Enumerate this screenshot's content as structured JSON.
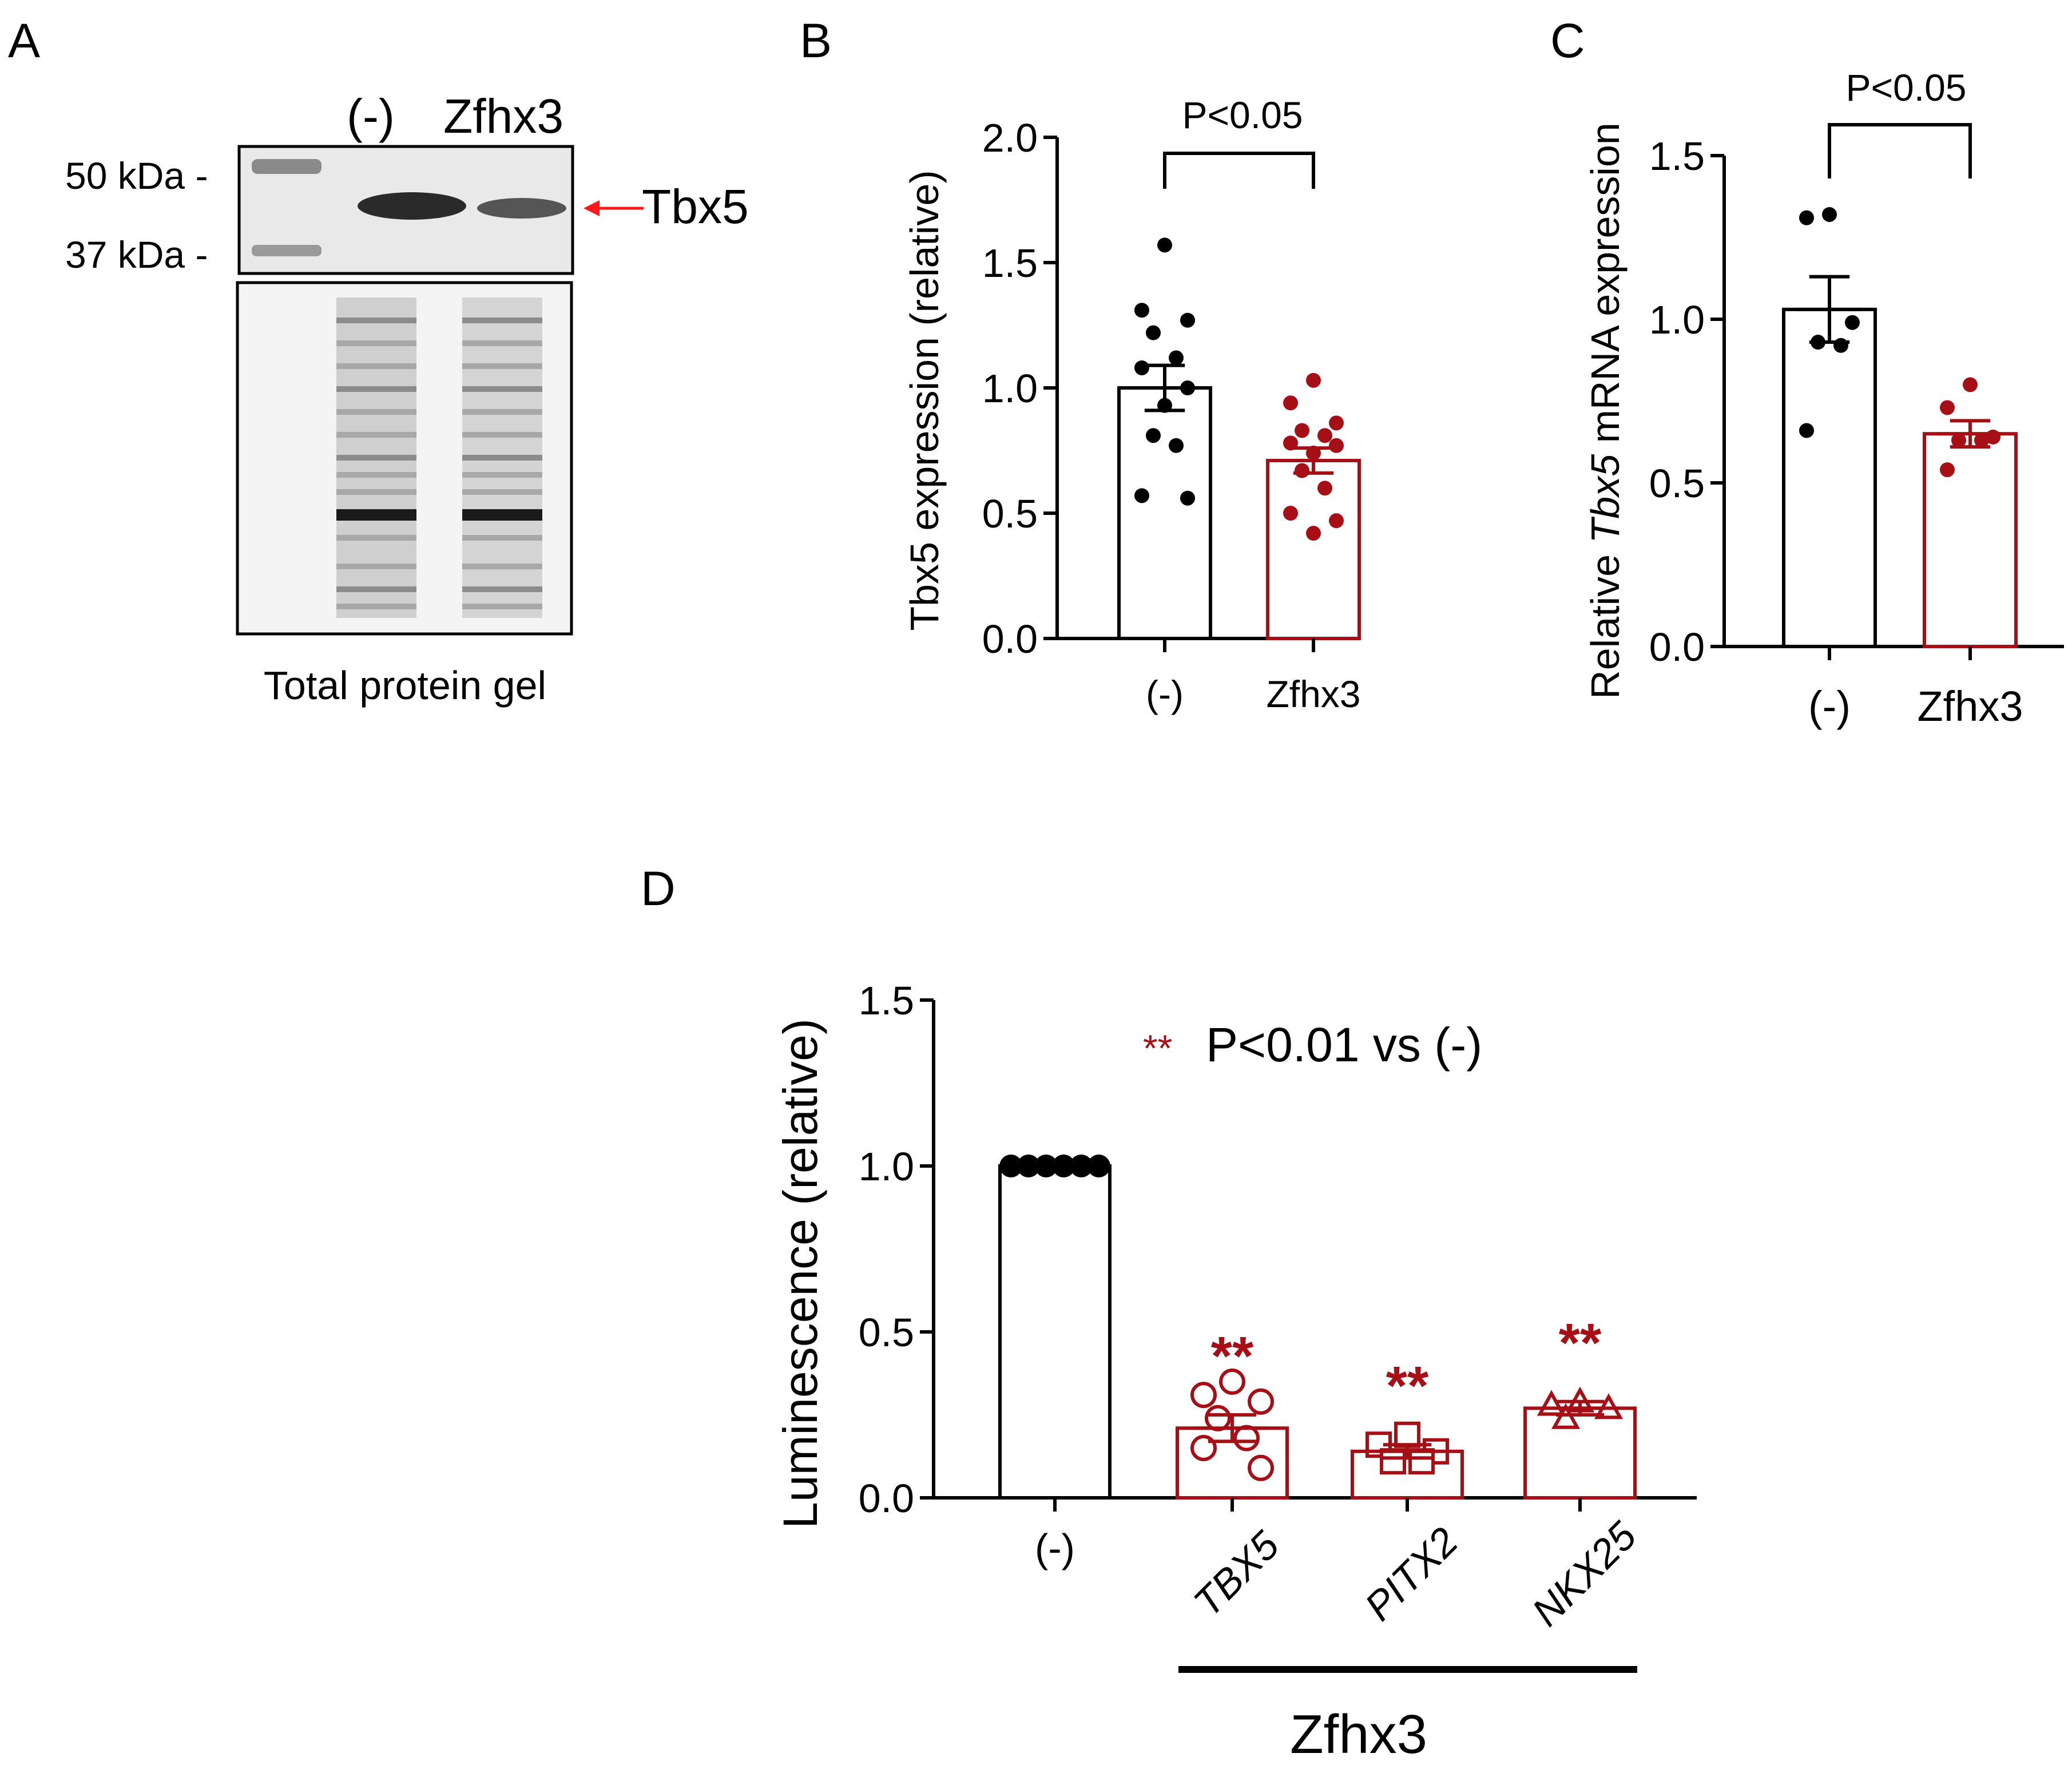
{
  "colors": {
    "black": "#000000",
    "red": "#a50f15",
    "arrow": "#ff1a1a",
    "blot_bg": "#e9e9e9",
    "gel_bg": "#f4f4f4"
  },
  "panel_a": {
    "label": "A",
    "lane_labels": [
      "(-)",
      "Zfhx3"
    ],
    "markers": [
      "50 kDa -",
      "37 kDa -"
    ],
    "band_label": "Tbx5",
    "gel_caption": "Total protein gel"
  },
  "chart_data": [
    {
      "panel": "B",
      "type": "bar",
      "ylabel": "Tbx5 expression (relative)",
      "ylim": [
        0,
        2.0
      ],
      "yticks": [
        "0.0",
        "0.5",
        "1.0",
        "1.5",
        "2.0"
      ],
      "categories": [
        "(-)",
        "Zfhx3"
      ],
      "values": [
        1.0,
        0.71
      ],
      "sem": [
        0.09,
        0.05
      ],
      "points": [
        [
          1.57,
          1.31,
          1.27,
          1.22,
          1.12,
          1.08,
          1.0,
          0.93,
          0.81,
          0.77,
          0.57,
          0.56
        ],
        [
          1.03,
          0.94,
          0.86,
          0.83,
          0.81,
          0.78,
          0.77,
          0.74,
          0.67,
          0.6,
          0.5,
          0.47,
          0.42
        ]
      ],
      "annotation": "P<0.05"
    },
    {
      "panel": "C",
      "type": "bar",
      "ylabel": "Relative Tbx5 mRNA expression",
      "ylabel_italic": "Tbx5",
      "ylim": [
        0,
        1.5
      ],
      "yticks": [
        "0.0",
        "0.5",
        "1.0",
        "1.5"
      ],
      "categories": [
        "(-)",
        "Zfhx3"
      ],
      "values": [
        1.03,
        0.65
      ],
      "sem": [
        0.1,
        0.04
      ],
      "points": [
        [
          1.32,
          1.31,
          0.99,
          0.93,
          0.92,
          0.66
        ],
        [
          0.8,
          0.73,
          0.64,
          0.63,
          0.63,
          0.54
        ]
      ],
      "annotation": "P<0.05"
    },
    {
      "panel": "D",
      "type": "bar",
      "ylabel": "Luminescence (relative)",
      "ylim": [
        0,
        1.5
      ],
      "yticks": [
        "0.0",
        "0.5",
        "1.0",
        "1.5"
      ],
      "categories": [
        "(-)",
        "TBX5",
        "PITX2",
        "NKX25"
      ],
      "values": [
        1.0,
        0.21,
        0.14,
        0.27
      ],
      "sem": [
        0.0,
        0.04,
        0.02,
        0.02
      ],
      "points": [
        [
          1.0,
          1.0,
          1.0,
          1.0,
          1.0,
          1.0
        ],
        [
          0.35,
          0.31,
          0.29,
          0.24,
          0.18,
          0.15,
          0.09
        ],
        [
          0.19,
          0.16,
          0.14,
          0.11,
          0.11
        ],
        [
          0.29,
          0.28,
          0.27,
          0.24
        ]
      ],
      "markers": [
        "dot",
        "circle",
        "square",
        "triangle"
      ],
      "significance": [
        "",
        "**",
        "**",
        "**"
      ],
      "legend_stars": "**",
      "legend_text": "P<0.01 vs (-)",
      "group_label": "Zfhx3"
    }
  ]
}
